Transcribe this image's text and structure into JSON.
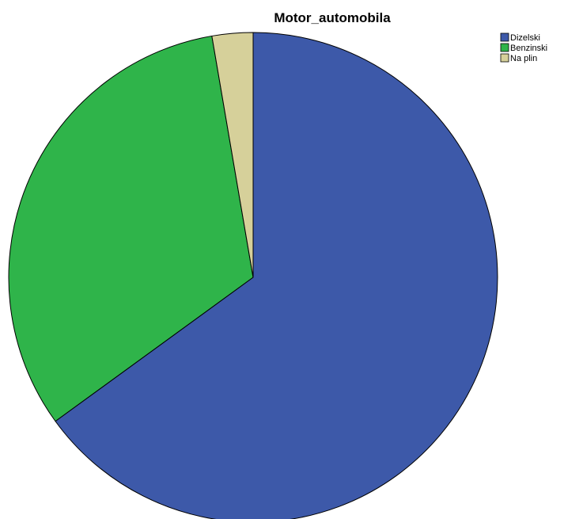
{
  "chart_data": {
    "type": "pie",
    "title": "Motor_automobila",
    "categories": [
      "Dizelski",
      "Benzinski",
      "Na plin"
    ],
    "values": [
      65.0,
      32.3,
      2.7
    ],
    "colors": [
      "#3d59a9",
      "#2fb44a",
      "#d6d09a"
    ],
    "start_angle_deg": 0,
    "direction": "clockwise",
    "legend_position": "top-right",
    "slice_labels": false
  }
}
